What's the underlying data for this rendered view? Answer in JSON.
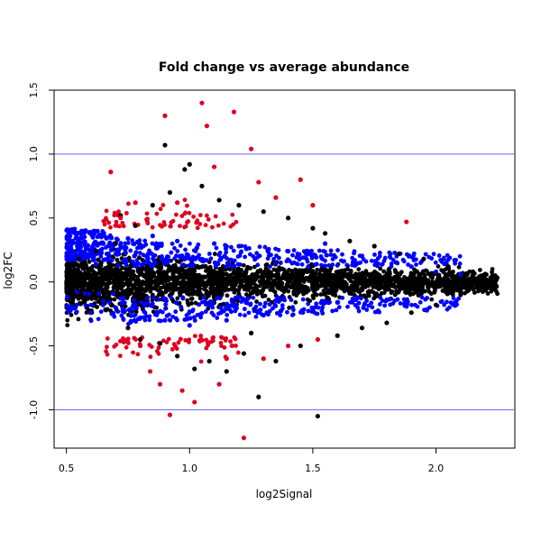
{
  "chart_data": {
    "type": "scatter",
    "title": "Fold change vs average abundance",
    "xlabel": "log2Signal",
    "ylabel": "log2FC",
    "xlim": [
      0.45,
      2.32
    ],
    "ylim": [
      -1.3,
      1.5
    ],
    "xticks": [
      0.5,
      1.0,
      1.5,
      2.0
    ],
    "xtick_labels": [
      "0.5",
      "1.0",
      "1.5",
      "2.0"
    ],
    "yticks": [
      -1.0,
      -0.5,
      0.0,
      0.5,
      1.0,
      1.5
    ],
    "ytick_labels": [
      "-1.0",
      "-0.5",
      "0.0",
      "0.5",
      "1.0",
      "1.5"
    ],
    "hlines": [
      1.0,
      -1.0
    ],
    "hline_color": "#6b6bff",
    "grid": false,
    "legend": "none",
    "series": [
      {
        "color": "#000000",
        "points": [
          [
            0.52,
            0.08
          ],
          [
            0.55,
            0.18
          ],
          [
            0.58,
            -0.12
          ],
          [
            0.62,
            0.24
          ],
          [
            0.66,
            -0.22
          ],
          [
            0.7,
            0.3
          ],
          [
            0.72,
            0.52
          ],
          [
            0.75,
            -0.36
          ],
          [
            0.78,
            0.44
          ],
          [
            0.8,
            -0.45
          ],
          [
            0.85,
            0.6
          ],
          [
            0.88,
            -0.48
          ],
          [
            0.9,
            1.07
          ],
          [
            0.92,
            0.7
          ],
          [
            0.95,
            -0.58
          ],
          [
            0.98,
            0.88
          ],
          [
            1.0,
            0.92
          ],
          [
            1.02,
            -0.68
          ],
          [
            1.05,
            0.75
          ],
          [
            1.08,
            -0.62
          ],
          [
            1.12,
            0.64
          ],
          [
            1.15,
            -0.7
          ],
          [
            1.2,
            0.6
          ],
          [
            1.22,
            -0.56
          ],
          [
            1.25,
            -0.4
          ],
          [
            1.28,
            -0.9
          ],
          [
            1.3,
            0.55
          ],
          [
            1.35,
            -0.62
          ],
          [
            1.4,
            0.5
          ],
          [
            1.45,
            -0.5
          ],
          [
            1.5,
            0.42
          ],
          [
            1.52,
            -1.05
          ],
          [
            1.55,
            0.38
          ],
          [
            1.6,
            -0.42
          ],
          [
            1.65,
            0.32
          ],
          [
            1.7,
            -0.36
          ],
          [
            1.75,
            0.28
          ],
          [
            1.8,
            -0.32
          ],
          [
            1.85,
            0.22
          ],
          [
            1.9,
            -0.24
          ],
          [
            1.95,
            0.18
          ],
          [
            2.0,
            -0.18
          ],
          [
            2.05,
            0.12
          ],
          [
            2.1,
            -0.1
          ],
          [
            2.15,
            0.08
          ],
          [
            2.2,
            -0.02
          ],
          [
            2.24,
            0.05
          ]
        ]
      },
      {
        "color": "#0000ff",
        "points": [
          [
            0.52,
            0.2
          ],
          [
            0.55,
            0.32
          ],
          [
            0.58,
            0.26
          ],
          [
            0.6,
            0.38
          ],
          [
            0.62,
            0.14
          ],
          [
            0.65,
            0.3
          ],
          [
            0.7,
            -0.2
          ],
          [
            0.75,
            0.34
          ],
          [
            0.8,
            -0.28
          ],
          [
            0.85,
            0.36
          ],
          [
            0.9,
            -0.3
          ],
          [
            0.95,
            0.32
          ],
          [
            1.0,
            -0.34
          ],
          [
            1.1,
            0.3
          ],
          [
            1.15,
            -0.3
          ],
          [
            1.2,
            0.28
          ],
          [
            1.3,
            -0.26
          ],
          [
            1.4,
            0.24
          ],
          [
            1.5,
            -0.22
          ],
          [
            1.55,
            0.3
          ],
          [
            1.6,
            -0.16
          ],
          [
            1.7,
            0.2
          ],
          [
            1.8,
            -0.14
          ],
          [
            1.9,
            0.12
          ],
          [
            2.0,
            0.08
          ],
          [
            2.1,
            0.06
          ]
        ]
      },
      {
        "color": "#e00020",
        "points": [
          [
            0.68,
            0.86
          ],
          [
            0.72,
            0.5
          ],
          [
            0.78,
            0.62
          ],
          [
            0.8,
            -0.5
          ],
          [
            0.84,
            -0.7
          ],
          [
            0.88,
            -0.8
          ],
          [
            0.9,
            1.3
          ],
          [
            0.92,
            -1.04
          ],
          [
            0.95,
            0.62
          ],
          [
            0.97,
            -0.85
          ],
          [
            1.02,
            -0.94
          ],
          [
            1.05,
            1.4
          ],
          [
            1.07,
            1.22
          ],
          [
            1.1,
            0.9
          ],
          [
            1.12,
            -0.8
          ],
          [
            1.15,
            -0.6
          ],
          [
            1.18,
            1.33
          ],
          [
            1.22,
            -1.22
          ],
          [
            1.25,
            1.04
          ],
          [
            1.28,
            0.78
          ],
          [
            1.3,
            -0.6
          ],
          [
            1.35,
            0.66
          ],
          [
            1.4,
            -0.5
          ],
          [
            1.45,
            0.8
          ],
          [
            1.5,
            0.6
          ],
          [
            1.52,
            -0.45
          ],
          [
            1.88,
            0.47
          ]
        ]
      }
    ]
  }
}
